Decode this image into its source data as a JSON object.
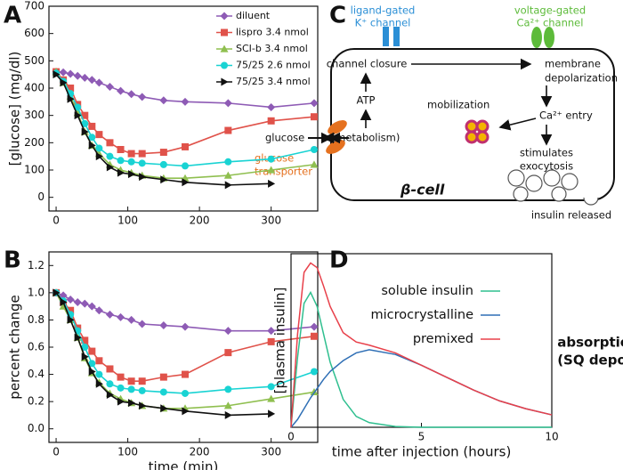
{
  "panels": [
    "A",
    "B",
    "C",
    "D"
  ],
  "chart_data": [
    {
      "type": "line",
      "ylabel": "[glucose] (mg/dl)",
      "x": [
        0,
        10,
        20,
        30,
        40,
        50,
        60,
        75,
        90,
        105,
        120,
        150,
        180,
        240,
        300,
        360
      ],
      "xlim": [
        -10,
        365
      ],
      "xticks": [
        0,
        100,
        200,
        300
      ],
      "ylim": [
        -50,
        700
      ],
      "yticks": [
        0,
        100,
        200,
        300,
        400,
        500,
        600,
        700
      ],
      "legend": "upper right",
      "series": [
        {
          "name": "diluent",
          "color": "#8e5bb5",
          "marker": "diamond",
          "values": [
            460,
            458,
            452,
            445,
            438,
            430,
            420,
            405,
            390,
            378,
            368,
            355,
            350,
            345,
            330,
            345
          ]
        },
        {
          "name": "lispro 3.4 nmol",
          "color": "#e0524a",
          "marker": "square",
          "values": [
            460,
            430,
            400,
            340,
            300,
            260,
            230,
            200,
            175,
            160,
            160,
            165,
            185,
            245,
            280,
            295
          ]
        },
        {
          "name": "SCI-b 3.4 nmol",
          "color": "#8fbf4f",
          "marker": "triangle",
          "values": [
            460,
            420,
            370,
            310,
            240,
            190,
            160,
            120,
            100,
            90,
            80,
            70,
            70,
            80,
            100,
            120
          ]
        },
        {
          "name": "75/25 2.6 nmol",
          "color": "#19d3d3",
          "marker": "circle",
          "values": [
            455,
            425,
            380,
            330,
            270,
            220,
            180,
            150,
            135,
            130,
            125,
            120,
            115,
            130,
            140,
            175
          ]
        },
        {
          "name": "75/25 3.4 nmol",
          "color": "#111111",
          "marker": "triangle-right",
          "values": [
            450,
            420,
            360,
            300,
            240,
            190,
            150,
            110,
            90,
            85,
            75,
            65,
            55,
            45,
            50,
            null
          ]
        }
      ]
    },
    {
      "type": "line",
      "ylabel": "percent change",
      "xlabel": "time (min)",
      "x": [
        0,
        10,
        20,
        30,
        40,
        50,
        60,
        75,
        90,
        105,
        120,
        150,
        180,
        240,
        300,
        360
      ],
      "xlim": [
        -10,
        365
      ],
      "xticks": [
        0,
        100,
        200,
        300
      ],
      "ylim": [
        -0.1,
        1.3
      ],
      "yticks": [
        {
          "value": 0,
          "label": "0.0"
        },
        0.2,
        0.4,
        0.6,
        0.8,
        {
          "value": 1,
          "label": "1.0"
        },
        1.2
      ],
      "series": [
        {
          "color": "#8e5bb5",
          "marker": "diamond",
          "values": [
            1.0,
            0.98,
            0.95,
            0.93,
            0.92,
            0.9,
            0.87,
            0.84,
            0.82,
            0.8,
            0.77,
            0.76,
            0.75,
            0.72,
            0.72,
            0.75
          ]
        },
        {
          "color": "#e0524a",
          "marker": "square",
          "values": [
            1.0,
            0.93,
            0.87,
            0.74,
            0.65,
            0.57,
            0.5,
            0.44,
            0.38,
            0.35,
            0.35,
            0.38,
            0.4,
            0.56,
            0.64,
            0.68
          ]
        },
        {
          "color": "#8fbf4f",
          "marker": "triangle",
          "values": [
            1.0,
            0.9,
            0.8,
            0.67,
            0.52,
            0.41,
            0.34,
            0.26,
            0.22,
            0.19,
            0.17,
            0.15,
            0.15,
            0.17,
            0.22,
            0.27
          ]
        },
        {
          "color": "#19d3d3",
          "marker": "circle",
          "values": [
            1.0,
            0.94,
            0.84,
            0.72,
            0.6,
            0.48,
            0.4,
            0.33,
            0.3,
            0.29,
            0.28,
            0.27,
            0.26,
            0.29,
            0.31,
            0.42
          ]
        },
        {
          "color": "#111111",
          "marker": "triangle-right",
          "values": [
            1.0,
            0.93,
            0.8,
            0.67,
            0.53,
            0.42,
            0.33,
            0.25,
            0.2,
            0.19,
            0.17,
            0.15,
            0.13,
            0.1,
            0.11,
            null
          ]
        }
      ]
    },
    {
      "type": "line",
      "ylabel": "[plasma insulin]",
      "xlabel": "time after injection (hours)",
      "annotations": [
        "absorption",
        "(SQ depot)"
      ],
      "x": [
        0,
        0.25,
        0.5,
        0.75,
        1,
        1.25,
        1.5,
        2,
        2.5,
        3,
        4,
        5,
        6,
        7,
        8,
        9,
        10
      ],
      "xlim": [
        0,
        10
      ],
      "xticks": [
        0,
        5,
        10
      ],
      "ylim": [
        0,
        1.12
      ],
      "legend": "upper right",
      "series": [
        {
          "name": "soluble insulin",
          "color": "#2fbf8f",
          "values": [
            0,
            0.45,
            0.8,
            0.87,
            0.78,
            0.6,
            0.42,
            0.18,
            0.07,
            0.03,
            0.005,
            0,
            0,
            0,
            0,
            0,
            0
          ]
        },
        {
          "name": "microcrystalline",
          "color": "#2f6fb5",
          "values": [
            0,
            0.05,
            0.12,
            0.19,
            0.25,
            0.31,
            0.36,
            0.43,
            0.48,
            0.5,
            0.47,
            0.4,
            0.32,
            0.24,
            0.17,
            0.12,
            0.08
          ]
        },
        {
          "name": "premixed",
          "color": "#e8404a",
          "values": [
            0,
            0.6,
            1.0,
            1.06,
            1.03,
            0.91,
            0.78,
            0.61,
            0.55,
            0.53,
            0.48,
            0.4,
            0.32,
            0.24,
            0.17,
            0.12,
            0.08
          ]
        }
      ]
    }
  ],
  "diagram": {
    "ligand_gated": [
      "ligand-gated",
      "K⁺ channel"
    ],
    "voltage_gated": [
      "voltage-gated",
      "Ca²⁺ channel"
    ],
    "channel_closure": "channel closure",
    "membrane_depolarization": [
      "membrane",
      "depolarization"
    ],
    "atp": "ATP",
    "metabolism": "(metabolism)",
    "glucose": "glucose",
    "glucose_transporter": [
      "glucose",
      "transporter"
    ],
    "ca_entry": "Ca²⁺ entry",
    "mobilization": "mobilization",
    "stimulates": [
      "stimulates",
      "exocytosis"
    ],
    "cell": "β-cell",
    "insulin_released": "insulin released"
  }
}
